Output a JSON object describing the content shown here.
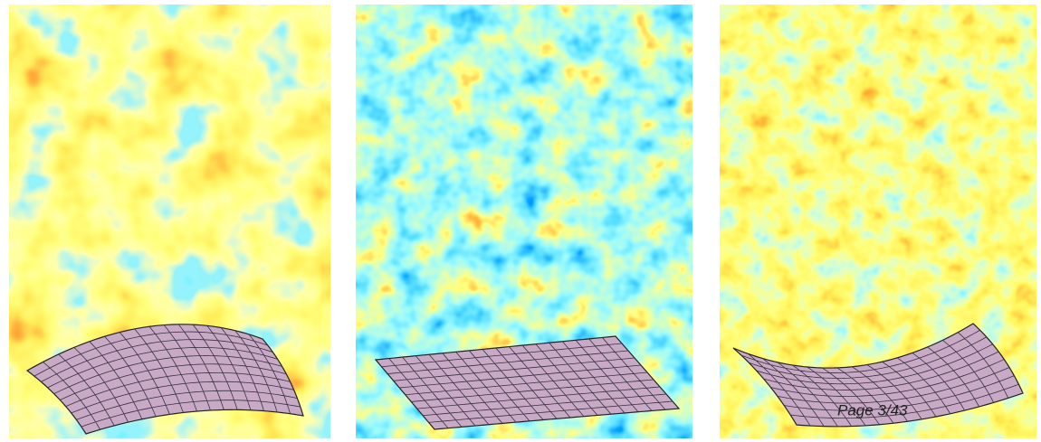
{
  "page_label": "Page 3/43"
}
